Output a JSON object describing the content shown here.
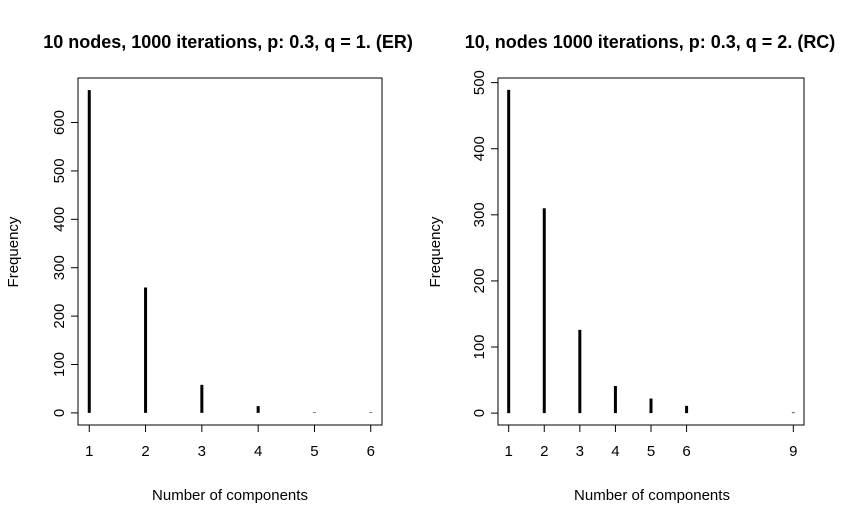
{
  "chart_data": [
    {
      "type": "bar",
      "title": "10 nodes, 1000 iterations, p: 0.3, q = 1. (ER)",
      "xlabel": "Number of components",
      "ylabel": "Frequency",
      "x": [
        1,
        2,
        3,
        4,
        5,
        6
      ],
      "values": [
        667,
        259,
        58,
        14,
        1,
        1
      ],
      "x_ticks": [
        1,
        2,
        3,
        4,
        5,
        6
      ],
      "y_ticks": [
        0,
        100,
        200,
        300,
        400,
        500,
        600
      ],
      "xlim": [
        0.8,
        6.2
      ],
      "ylim": [
        -25,
        692
      ],
      "grid": false
    },
    {
      "type": "bar",
      "title": "10, nodes 1000 iterations, p: 0.3, q = 2. (RC)",
      "xlabel": "Number of components",
      "ylabel": "Frequency",
      "x": [
        1,
        2,
        3,
        4,
        5,
        6,
        9
      ],
      "values": [
        489,
        310,
        126,
        41,
        22,
        11,
        1
      ],
      "x_ticks": [
        1,
        2,
        3,
        4,
        5,
        6,
        9
      ],
      "y_ticks": [
        0,
        100,
        200,
        300,
        400,
        500
      ],
      "xlim": [
        0.7,
        9.3
      ],
      "ylim": [
        -18,
        507
      ],
      "grid": false
    }
  ]
}
